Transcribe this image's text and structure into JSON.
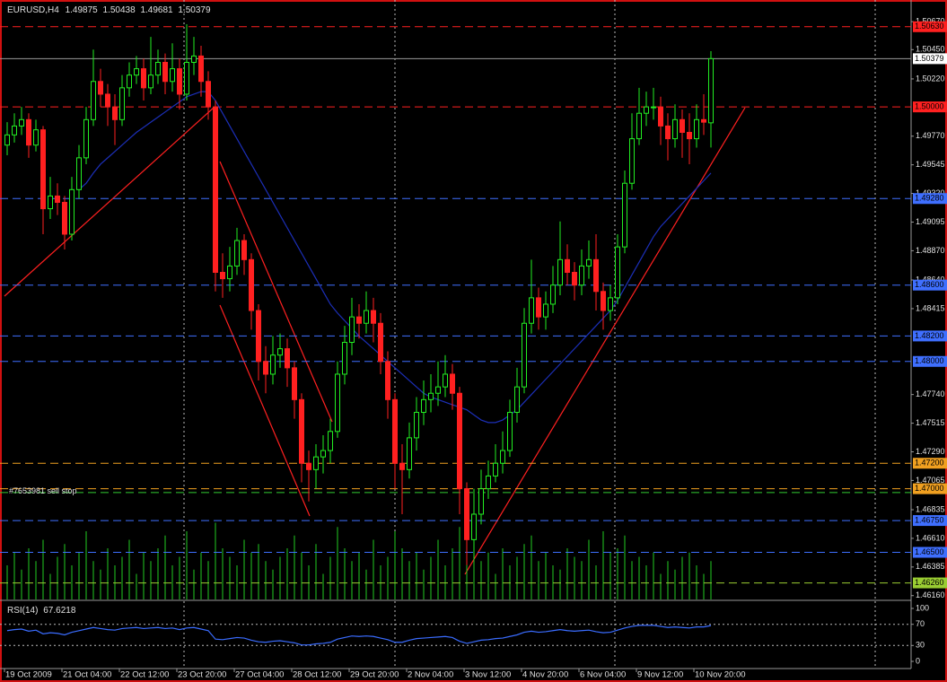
{
  "chart_data": {
    "type": "candlestick",
    "symbol": "EURUSD,H4",
    "open": [
      1.497,
      1.4978,
      1.4985,
      1.499,
      1.497,
      1.4982,
      1.492,
      1.493,
      1.4925,
      1.49,
      1.4935,
      1.496,
      1.499,
      1.502,
      1.501,
      1.5,
      1.499,
      1.5015,
      1.5025,
      1.503,
      1.5015,
      1.5025,
      1.5035,
      1.502,
      1.503,
      1.501,
      1.5035,
      1.504,
      1.502,
      1.5,
      1.487,
      1.4865,
      1.4875,
      1.4895,
      1.488,
      1.484,
      1.48,
      1.479,
      1.4805,
      1.481,
      1.4795,
      1.477,
      1.472,
      1.4715,
      1.4725,
      1.473,
      1.4745,
      1.479,
      1.4815,
      1.4835,
      1.483,
      1.484,
      1.483,
      1.48,
      1.477,
      1.472,
      1.4715,
      1.474,
      1.476,
      1.477,
      1.4775,
      1.478,
      1.479,
      1.4775,
      1.47,
      1.466,
      1.468,
      1.47,
      1.471,
      1.472,
      1.473,
      1.476,
      1.478,
      1.483,
      1.485,
      1.4835,
      1.4845,
      1.486,
      1.488,
      1.487,
      1.486,
      1.4875,
      1.488,
      1.4855,
      1.484,
      1.485,
      1.489,
      1.494,
      1.4975,
      1.4995,
      1.5,
      1.5,
      1.4985,
      1.4975,
      1.499,
      1.498,
      1.4975,
      1.499,
      1.49875
    ],
    "high": [
      1.4988,
      1.4995,
      1.5,
      1.4995,
      1.499,
      1.4985,
      1.4945,
      1.494,
      1.493,
      1.4945,
      1.497,
      1.5,
      1.5045,
      1.503,
      1.5018,
      1.501,
      1.5025,
      1.5035,
      1.504,
      1.5038,
      1.5055,
      1.5045,
      1.5042,
      1.505,
      1.5038,
      1.5065,
      1.5055,
      1.5048,
      1.5028,
      1.5005,
      1.4885,
      1.489,
      1.4905,
      1.49,
      1.4885,
      1.4845,
      1.4812,
      1.482,
      1.4822,
      1.4818,
      1.48,
      1.4775,
      1.473,
      1.4735,
      1.4742,
      1.4755,
      1.48,
      1.4828,
      1.485,
      1.4845,
      1.4855,
      1.485,
      1.4838,
      1.4808,
      1.4775,
      1.4735,
      1.4752,
      1.4772,
      1.4785,
      1.479,
      1.48,
      1.4805,
      1.4798,
      1.478,
      1.4705,
      1.47,
      1.4715,
      1.4722,
      1.4735,
      1.4745,
      1.477,
      1.4795,
      1.4842,
      1.488,
      1.4858,
      1.4855,
      1.4875,
      1.491,
      1.4892,
      1.4878,
      1.4888,
      1.4895,
      1.49,
      1.4862,
      1.486,
      1.49,
      1.495,
      1.4995,
      1.5015,
      1.5012,
      1.5015,
      1.5008,
      1.4995,
      1.5002,
      1.4998,
      1.4995,
      1.5002,
      1.501,
      1.50438
    ],
    "low": [
      1.4962,
      1.4972,
      1.4978,
      1.496,
      1.4965,
      1.49,
      1.4912,
      1.4915,
      1.4888,
      1.4895,
      1.4928,
      1.4955,
      1.4985,
      1.5,
      1.4985,
      1.497,
      1.4985,
      1.5008,
      1.5018,
      1.5005,
      1.501,
      1.5018,
      1.501,
      1.5012,
      1.4998,
      1.5005,
      1.5025,
      1.5008,
      1.499,
      1.4855,
      1.485,
      1.4855,
      1.4868,
      1.4868,
      1.4825,
      1.4785,
      1.4775,
      1.4782,
      1.4795,
      1.478,
      1.4755,
      1.4705,
      1.469,
      1.47,
      1.4712,
      1.472,
      1.474,
      1.4782,
      1.4805,
      1.4818,
      1.4822,
      1.4815,
      1.479,
      1.4755,
      1.47,
      1.468,
      1.4708,
      1.473,
      1.475,
      1.476,
      1.4765,
      1.4772,
      1.4762,
      1.468,
      1.464,
      1.4645,
      1.4672,
      1.4692,
      1.4705,
      1.4712,
      1.4725,
      1.4752,
      1.4775,
      1.4822,
      1.4825,
      1.4825,
      1.4838,
      1.4852,
      1.486,
      1.4848,
      1.4852,
      1.4865,
      1.484,
      1.4825,
      1.4832,
      1.4845,
      1.4885,
      1.4935,
      1.497,
      1.4985,
      1.499,
      1.497,
      1.4958,
      1.4968,
      1.496,
      1.4955,
      1.4968,
      1.4978,
      1.49681
    ],
    "close": [
      1.4978,
      1.4985,
      1.499,
      1.497,
      1.4982,
      1.492,
      1.493,
      1.4925,
      1.49,
      1.4935,
      1.496,
      1.499,
      1.502,
      1.501,
      1.5,
      1.499,
      1.5015,
      1.5025,
      1.503,
      1.5015,
      1.5025,
      1.5035,
      1.502,
      1.503,
      1.501,
      1.5035,
      1.504,
      1.502,
      1.5,
      1.487,
      1.4865,
      1.4875,
      1.4895,
      1.488,
      1.484,
      1.48,
      1.479,
      1.4805,
      1.481,
      1.4795,
      1.477,
      1.472,
      1.4715,
      1.4725,
      1.473,
      1.4745,
      1.479,
      1.4815,
      1.4835,
      1.483,
      1.484,
      1.483,
      1.48,
      1.477,
      1.472,
      1.4715,
      1.474,
      1.476,
      1.477,
      1.4775,
      1.478,
      1.479,
      1.4775,
      1.47,
      1.466,
      1.468,
      1.47,
      1.471,
      1.472,
      1.473,
      1.476,
      1.478,
      1.483,
      1.485,
      1.4835,
      1.4845,
      1.486,
      1.488,
      1.487,
      1.486,
      1.4875,
      1.488,
      1.4855,
      1.484,
      1.485,
      1.489,
      1.494,
      1.4975,
      1.4995,
      1.5,
      1.5,
      1.4985,
      1.4975,
      1.499,
      1.498,
      1.4975,
      1.499,
      1.4988,
      1.50379
    ],
    "ma": [
      null,
      null,
      null,
      null,
      null,
      null,
      null,
      null,
      null,
      null,
      1.4935,
      1.494,
      1.4948,
      1.4955,
      1.496,
      1.4965,
      1.497,
      1.4975,
      1.498,
      1.4984,
      1.4988,
      1.4992,
      1.4996,
      1.5,
      1.5004,
      1.5008,
      1.501,
      1.5012,
      1.5012,
      1.5005,
      1.4995,
      1.4985,
      1.4975,
      1.4965,
      1.4955,
      1.4945,
      1.4935,
      1.4925,
      1.4915,
      1.4905,
      1.4895,
      1.4885,
      1.4875,
      1.4865,
      1.4855,
      1.4845,
      1.4838,
      1.4832,
      1.4826,
      1.482,
      1.4815,
      1.481,
      1.4805,
      1.48,
      1.4795,
      1.479,
      1.4785,
      1.478,
      1.4775,
      1.4772,
      1.477,
      1.4768,
      1.4766,
      1.4764,
      1.4762,
      1.4758,
      1.4754,
      1.4752,
      1.4752,
      1.4754,
      1.4758,
      1.4762,
      1.4768,
      1.4774,
      1.478,
      1.4786,
      1.4792,
      1.4798,
      1.4804,
      1.481,
      1.4816,
      1.4822,
      1.4828,
      1.4834,
      1.484,
      1.4848,
      1.4858,
      1.4868,
      1.4878,
      1.4888,
      1.4898,
      1.4906,
      1.4912,
      1.4918,
      1.4924,
      1.493,
      1.4936,
      1.4942,
      1.4948
    ],
    "volume": [
      40,
      55,
      35,
      60,
      45,
      70,
      30,
      50,
      65,
      40,
      55,
      80,
      45,
      35,
      60,
      40,
      50,
      70,
      30,
      55,
      45,
      60,
      75,
      40,
      50,
      80,
      35,
      55,
      45,
      90,
      60,
      50,
      40,
      70,
      55,
      65,
      45,
      35,
      50,
      60,
      75,
      55,
      40,
      65,
      30,
      50,
      85,
      60,
      45,
      55,
      35,
      70,
      40,
      50,
      80,
      60,
      45,
      55,
      35,
      50,
      70,
      40,
      60,
      85,
      75,
      50,
      45,
      55,
      30,
      60,
      40,
      50,
      65,
      75,
      45,
      55,
      40,
      35,
      60,
      50,
      45,
      70,
      40,
      80,
      55,
      60,
      75,
      45,
      50,
      40,
      55,
      30,
      45,
      35,
      50,
      55,
      40,
      30,
      45
    ],
    "volume_lim": [
      0,
      100
    ],
    "ylim": [
      1.4613,
      1.5084
    ],
    "yticks": [
      {
        "value": 1.5067,
        "label": "1.50670"
      },
      {
        "value": 1.5045,
        "label": "1.50450"
      },
      {
        "value": 1.5022,
        "label": "1.50220"
      },
      {
        "value": 1.4977,
        "label": "1.49770"
      },
      {
        "value": 1.49545,
        "label": "1.49545"
      },
      {
        "value": 1.4932,
        "label": "1.49320"
      },
      {
        "value": 1.49095,
        "label": "1.49095"
      },
      {
        "value": 1.4887,
        "label": "1.48870"
      },
      {
        "value": 1.4864,
        "label": "1.48640"
      },
      {
        "value": 1.48415,
        "label": "1.48415"
      },
      {
        "value": 1.4774,
        "label": "1.47740"
      },
      {
        "value": 1.47515,
        "label": "1.47515"
      },
      {
        "value": 1.4729,
        "label": "1.47290"
      },
      {
        "value": 1.47065,
        "label": "1.47065"
      },
      {
        "value": 1.46835,
        "label": "1.46835"
      },
      {
        "value": 1.4661,
        "label": "1.46610"
      },
      {
        "value": 1.46385,
        "label": "1.46385"
      },
      {
        "value": 1.4616,
        "label": "1.46160"
      }
    ],
    "levels": [
      {
        "price": 1.5063,
        "label": "1.50630",
        "color": "#ff2020"
      },
      {
        "price": 1.5,
        "label": "1.50000",
        "color": "#ff2020"
      },
      {
        "price": 1.4928,
        "label": "1.49280",
        "color": "#3f6fff"
      },
      {
        "price": 1.486,
        "label": "1.48600",
        "color": "#3f6fff"
      },
      {
        "price": 1.482,
        "label": "1.48200",
        "color": "#3f6fff"
      },
      {
        "price": 1.48,
        "label": "1.48000",
        "color": "#3f6fff"
      },
      {
        "price": 1.472,
        "label": "1.47200",
        "color": "#f0a020"
      },
      {
        "price": 1.47,
        "label": "1.47000",
        "color": "#f0a020"
      },
      {
        "price": 1.4675,
        "label": "1.46750",
        "color": "#3f6fff"
      },
      {
        "price": 1.465,
        "label": "1.46500",
        "color": "#3f6fff"
      },
      {
        "price": 1.4626,
        "label": "1.46260",
        "color": "#9acd32"
      }
    ],
    "order": {
      "label": "#7653981 sell stop",
      "price": 1.4697
    },
    "rsi_label": "RSI(14)",
    "rsi": [
      58,
      60,
      61,
      57,
      59,
      52,
      54,
      53,
      50,
      55,
      58,
      61,
      64,
      62,
      60,
      59,
      62,
      63,
      64,
      62,
      63,
      64,
      62,
      63,
      60,
      63,
      64,
      61,
      58,
      42,
      41,
      43,
      45,
      44,
      40,
      37,
      36,
      38,
      39,
      37,
      35,
      31,
      31,
      33,
      34,
      36,
      42,
      45,
      48,
      47,
      48,
      47,
      44,
      41,
      36,
      36,
      40,
      43,
      44,
      45,
      46,
      47,
      45,
      38,
      34,
      37,
      40,
      41,
      43,
      44,
      47,
      50,
      55,
      57,
      55,
      56,
      58,
      60,
      58,
      57,
      58,
      59,
      56,
      54,
      55,
      59,
      63,
      66,
      68,
      68,
      68,
      66,
      64,
      65,
      64,
      63,
      65,
      65,
      67.6218
    ],
    "rsi_lim": [
      0,
      100
    ],
    "rsi_ticks": [
      100,
      70,
      30,
      0
    ],
    "xlabels": [
      "19 Oct 2009",
      "21 Oct 04:00",
      "22 Oct 12:00",
      "23 Oct 20:00",
      "27 Oct 04:00",
      "28 Oct 12:00",
      "29 Oct 20:00",
      "2 Nov 04:00",
      "3 Nov 12:00",
      "4 Nov 20:00",
      "6 Nov 04:00",
      "9 Nov 12:00",
      "10 Nov 20:00"
    ]
  }
}
